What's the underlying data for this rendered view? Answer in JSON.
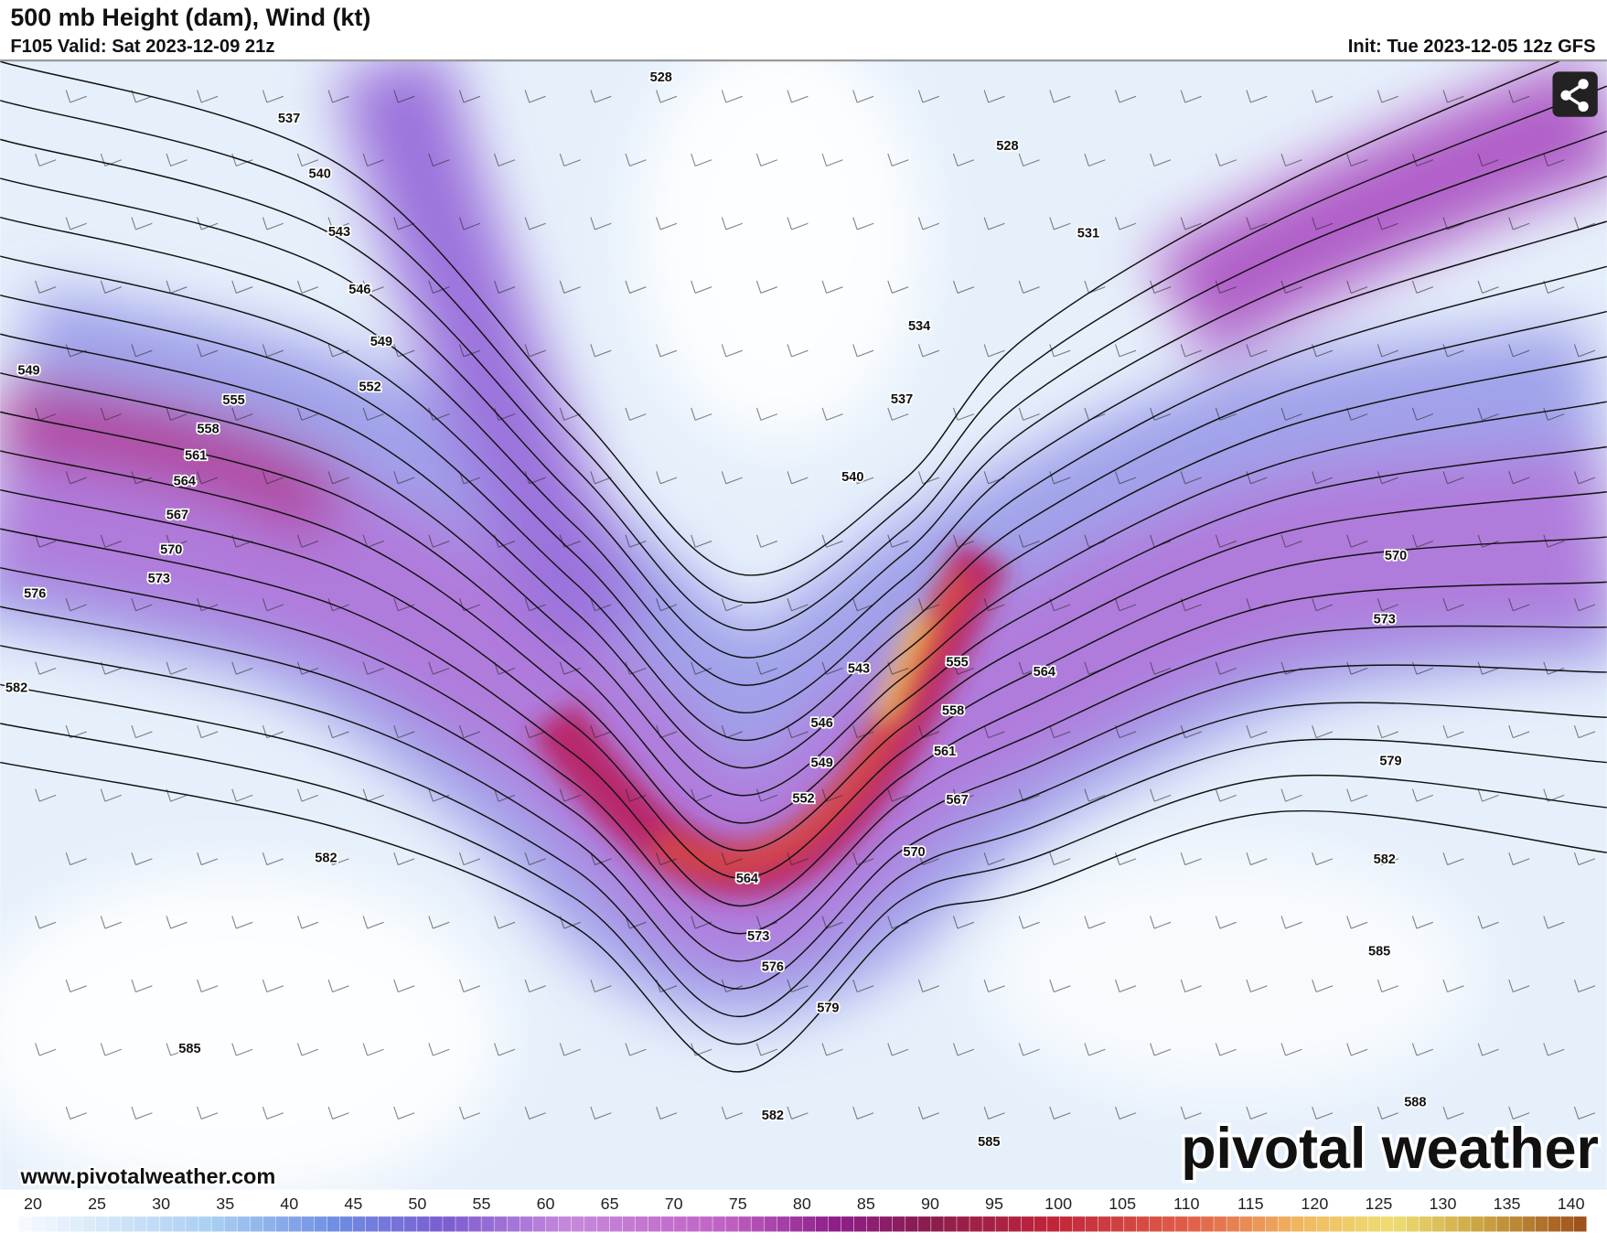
{
  "header": {
    "title": "500 mb Height (dam), Wind (kt)",
    "valid": "F105 Valid: Sat 2023-12-09 21z",
    "init": "Init: Tue 2023-12-05 12z GFS"
  },
  "contour_labels": [
    528,
    528,
    531,
    534,
    537,
    537,
    540,
    540,
    543,
    543,
    546,
    546,
    549,
    549,
    549,
    552,
    552,
    555,
    555,
    558,
    558,
    561,
    561,
    564,
    564,
    564,
    567,
    567,
    570,
    570,
    570,
    573,
    573,
    573,
    576,
    576,
    579,
    579,
    582,
    582,
    582,
    582,
    585,
    585,
    585,
    588
  ],
  "footer": {
    "url": "www.pivotalweather.com",
    "logo": "pivotal weather"
  },
  "colorbar": {
    "ticks": [
      20,
      25,
      30,
      35,
      40,
      45,
      50,
      55,
      60,
      65,
      70,
      75,
      80,
      85,
      90,
      95,
      100,
      105,
      110,
      115,
      120,
      125,
      130,
      135,
      140
    ]
  }
}
